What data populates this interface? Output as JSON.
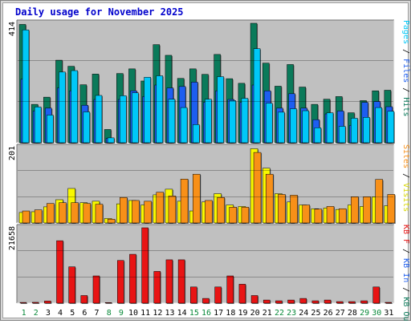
{
  "title": "Daily usage for November 2025",
  "colors": {
    "background": "#c0c0c0",
    "pages": "#00c8f8",
    "files": "#1d5ef0",
    "hits": "#0a7a5a",
    "visits": "#f8f800",
    "sites": "#f89018",
    "kb_in": "#0c8f5a",
    "kb_out": "#2060d8",
    "kb_f": "#e81414"
  },
  "chart_data": [
    {
      "type": "bar",
      "name": "hits-files-pages",
      "ymax_label": "414",
      "ylim": [
        0,
        414
      ],
      "legend": [
        "Pages",
        "Files",
        "Hits"
      ],
      "categories": [
        "1",
        "2",
        "3",
        "4",
        "5",
        "6",
        "7",
        "8",
        "9",
        "10",
        "11",
        "12",
        "13",
        "14",
        "15",
        "16",
        "17",
        "18",
        "19",
        "20",
        "21",
        "22",
        "23",
        "24",
        "25",
        "26",
        "27",
        "28",
        "29",
        "30",
        "31"
      ],
      "series": [
        {
          "name": "Hits",
          "values": [
            410,
            133,
            158,
            286,
            265,
            201,
            238,
            46,
            240,
            256,
            214,
            340,
            303,
            223,
            256,
            237,
            306,
            222,
            206,
            414,
            276,
            196,
            271,
            193,
            133,
            151,
            160,
            104,
            146,
            180,
            182
          ]
        },
        {
          "name": "Files",
          "values": [
            220,
            110,
            120,
            190,
            180,
            130,
            150,
            15,
            150,
            180,
            160,
            200,
            190,
            195,
            210,
            140,
            180,
            150,
            140,
            200,
            180,
            120,
            170,
            120,
            80,
            100,
            110,
            60,
            140,
            143,
            125
          ]
        },
        {
          "name": "Pages",
          "values": [
            391,
            124,
            96,
            245,
            250,
            107,
            164,
            17,
            163,
            173,
            227,
            232,
            151,
            122,
            63,
            151,
            229,
            146,
            154,
            326,
            137,
            106,
            118,
            111,
            52,
            104,
            57,
            85,
            88,
            122,
            109
          ]
        }
      ]
    },
    {
      "type": "bar",
      "name": "visits-sites",
      "ymax_label": "201",
      "ylim": [
        0,
        201
      ],
      "legend": [
        "Sites",
        "Visits"
      ],
      "categories": [
        "1",
        "2",
        "3",
        "4",
        "5",
        "6",
        "7",
        "8",
        "9",
        "10",
        "11",
        "12",
        "13",
        "14",
        "15",
        "16",
        "17",
        "18",
        "19",
        "20",
        "21",
        "22",
        "23",
        "24",
        "25",
        "26",
        "27",
        "28",
        "29",
        "30",
        "31"
      ],
      "series": [
        {
          "name": "Visits",
          "values": [
            28,
            30,
            43,
            62,
            92,
            54,
            58,
            12,
            51,
            60,
            48,
            75,
            90,
            58,
            32,
            56,
            78,
            48,
            44,
            198,
            146,
            78,
            56,
            48,
            38,
            40,
            36,
            48,
            44,
            70,
            46
          ]
        },
        {
          "name": "Sites",
          "values": [
            32,
            35,
            52,
            54,
            54,
            52,
            50,
            10,
            68,
            60,
            58,
            82,
            72,
            117,
            130,
            60,
            68,
            42,
            42,
            188,
            130,
            76,
            74,
            48,
            37,
            44,
            38,
            70,
            70,
            116,
            76
          ]
        }
      ]
    },
    {
      "type": "bar",
      "name": "kbytes",
      "ymax_label": "21658",
      "ylim": [
        0,
        21658
      ],
      "legend": [
        "KB F",
        "KB In",
        "KB Out"
      ],
      "categories": [
        "1",
        "2",
        "3",
        "4",
        "5",
        "6",
        "7",
        "8",
        "9",
        "10",
        "11",
        "12",
        "13",
        "14",
        "15",
        "16",
        "17",
        "18",
        "19",
        "20",
        "21",
        "22",
        "23",
        "24",
        "25",
        "26",
        "27",
        "28",
        "29",
        "30",
        "31"
      ],
      "series": [
        {
          "name": "KB F",
          "values": [
            210,
            240,
            610,
            17940,
            10440,
            2190,
            7830,
            170,
            12270,
            14040,
            21658,
            9120,
            12460,
            12460,
            4650,
            1360,
            4650,
            7830,
            5440,
            2190,
            900,
            680,
            900,
            1360,
            680,
            900,
            450,
            450,
            680,
            4650,
            230
          ]
        }
      ]
    }
  ],
  "day_labels": [
    "1",
    "2",
    "3",
    "4",
    "5",
    "6",
    "7",
    "8",
    "9",
    "10",
    "11",
    "12",
    "13",
    "14",
    "15",
    "16",
    "17",
    "18",
    "19",
    "20",
    "21",
    "22",
    "23",
    "24",
    "25",
    "26",
    "27",
    "28",
    "29",
    "30",
    "31"
  ],
  "weekend_days": [
    1,
    2,
    8,
    9,
    15,
    16,
    22,
    23,
    29,
    30
  ],
  "right_legends": [
    [
      {
        "text": "Pages",
        "color": "#00c8f8"
      },
      {
        "text": " / ",
        "color": "#000000"
      },
      {
        "text": "Files",
        "color": "#1d5ef0"
      },
      {
        "text": " / ",
        "color": "#000000"
      },
      {
        "text": "Hits",
        "color": "#0a7a5a"
      }
    ],
    [
      {
        "text": "Sites",
        "color": "#f89018"
      },
      {
        "text": " / ",
        "color": "#000000"
      },
      {
        "text": "Visits",
        "color": "#d8d800"
      }
    ],
    [
      {
        "text": "KB F",
        "color": "#e81414"
      },
      {
        "text": " / ",
        "color": "#000000"
      },
      {
        "text": "KB In",
        "color": "#1d5ef0"
      },
      {
        "text": " / ",
        "color": "#000000"
      },
      {
        "text": "KB Out",
        "color": "#0a7a5a"
      }
    ]
  ]
}
